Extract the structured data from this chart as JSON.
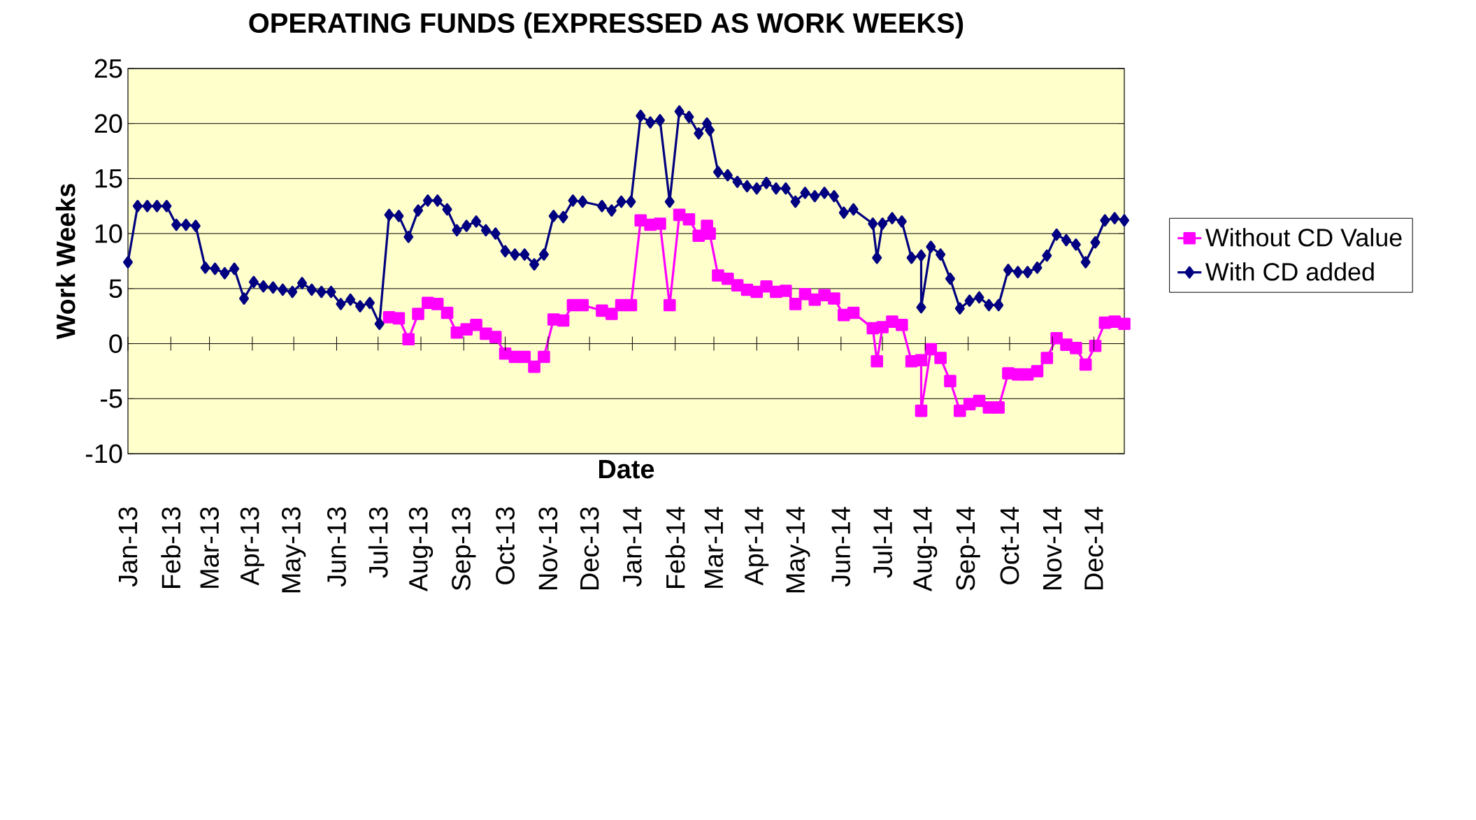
{
  "chart_data": {
    "type": "line",
    "title": "OPERATING FUNDS (EXPRESSED AS WORK WEEKS)",
    "xlabel": "Date",
    "ylabel": "Work Weeks",
    "x": [
      "2013-01-01",
      "2013-01-08",
      "2013-01-15",
      "2013-01-22",
      "2013-01-29",
      "2013-02-05",
      "2013-02-12",
      "2013-02-19",
      "2013-02-26",
      "2013-03-05",
      "2013-03-12",
      "2013-03-19",
      "2013-03-26",
      "2013-04-02",
      "2013-04-09",
      "2013-04-16",
      "2013-04-23",
      "2013-04-30",
      "2013-05-07",
      "2013-05-14",
      "2013-05-21",
      "2013-05-28",
      "2013-06-04",
      "2013-06-11",
      "2013-06-18",
      "2013-06-25",
      "2013-07-02",
      "2013-07-09",
      "2013-07-16",
      "2013-07-23",
      "2013-07-30",
      "2013-08-06",
      "2013-08-13",
      "2013-08-20",
      "2013-08-27",
      "2013-09-03",
      "2013-09-10",
      "2013-09-17",
      "2013-09-24",
      "2013-10-01",
      "2013-10-08",
      "2013-10-15",
      "2013-10-22",
      "2013-10-29",
      "2013-11-05",
      "2013-11-12",
      "2013-11-19",
      "2013-11-26",
      "2013-12-10",
      "2013-12-17",
      "2013-12-24",
      "2013-12-31",
      "2014-01-07",
      "2014-01-14",
      "2014-01-21",
      "2014-01-28",
      "2014-02-04",
      "2014-02-11",
      "2014-02-18",
      "2014-02-24",
      "2014-02-26",
      "2014-03-04",
      "2014-03-11",
      "2014-03-18",
      "2014-03-25",
      "2014-04-01",
      "2014-04-08",
      "2014-04-15",
      "2014-04-22",
      "2014-04-29",
      "2014-05-06",
      "2014-05-13",
      "2014-05-20",
      "2014-05-27",
      "2014-06-03",
      "2014-06-10",
      "2014-06-24",
      "2014-06-27",
      "2014-07-01",
      "2014-07-08",
      "2014-07-15",
      "2014-07-22",
      "2014-07-29",
      "2014-07-29",
      "2014-08-05",
      "2014-08-12",
      "2014-08-19",
      "2014-08-26",
      "2014-09-02",
      "2014-09-09",
      "2014-09-16",
      "2014-09-23",
      "2014-09-30",
      "2014-10-07",
      "2014-10-14",
      "2014-10-21",
      "2014-10-28",
      "2014-11-04",
      "2014-11-11",
      "2014-11-18",
      "2014-11-25",
      "2014-12-02",
      "2014-12-09",
      "2014-12-16",
      "2014-12-23"
    ],
    "series": [
      {
        "name": "Without CD Value",
        "color": "#ff00ff",
        "marker": "square",
        "values": [
          null,
          null,
          null,
          null,
          null,
          null,
          null,
          null,
          null,
          null,
          null,
          null,
          null,
          null,
          null,
          null,
          null,
          null,
          null,
          null,
          null,
          null,
          null,
          null,
          null,
          null,
          null,
          2.4,
          2.3,
          0.4,
          2.7,
          3.7,
          3.6,
          2.8,
          1.0,
          1.3,
          1.7,
          0.9,
          0.6,
          -0.9,
          -1.2,
          -1.2,
          -2.1,
          -1.2,
          2.2,
          2.1,
          3.5,
          3.5,
          3.0,
          2.7,
          3.5,
          3.5,
          11.2,
          10.8,
          10.9,
          3.5,
          11.7,
          11.3,
          9.8,
          10.7,
          10.0,
          6.2,
          5.9,
          5.3,
          4.9,
          4.7,
          5.2,
          4.7,
          4.8,
          3.6,
          4.5,
          4.0,
          4.4,
          4.1,
          2.6,
          2.8,
          1.4,
          -1.6,
          1.5,
          2.0,
          1.7,
          -1.6,
          -1.5,
          -6.1,
          -0.5,
          -1.3,
          -3.4,
          -6.1,
          -5.5,
          -5.2,
          -5.8,
          -5.8,
          -2.7,
          -2.8,
          -2.8,
          -2.5,
          -1.3,
          0.5,
          -0.1,
          -0.4,
          -1.9,
          -0.2,
          1.9,
          2.0,
          1.8
        ]
      },
      {
        "name": "With CD added",
        "color": "#000080",
        "marker": "diamond",
        "values": [
          7.4,
          12.5,
          12.5,
          12.5,
          12.5,
          10.8,
          10.8,
          10.7,
          6.9,
          6.8,
          6.4,
          6.8,
          4.1,
          5.6,
          5.2,
          5.1,
          4.9,
          4.7,
          5.5,
          4.9,
          4.7,
          4.7,
          3.6,
          4.0,
          3.4,
          3.7,
          1.8,
          11.7,
          11.6,
          9.7,
          12.1,
          13.0,
          13.0,
          12.2,
          10.3,
          10.7,
          11.1,
          10.3,
          10.0,
          8.4,
          8.1,
          8.1,
          7.2,
          8.1,
          11.6,
          11.5,
          13.0,
          12.9,
          12.5,
          12.1,
          12.9,
          12.9,
          20.7,
          20.1,
          20.3,
          12.9,
          21.1,
          20.6,
          19.1,
          20.0,
          19.4,
          15.6,
          15.3,
          14.7,
          14.3,
          14.1,
          14.6,
          14.1,
          14.1,
          12.9,
          13.7,
          13.4,
          13.7,
          13.4,
          11.9,
          12.2,
          10.9,
          7.8,
          10.9,
          11.4,
          11.1,
          7.8,
          8.0,
          3.3,
          8.8,
          8.1,
          5.9,
          3.2,
          3.9,
          4.2,
          3.5,
          3.5,
          6.7,
          6.5,
          6.5,
          6.9,
          8.0,
          9.9,
          9.4,
          9.0,
          7.4,
          9.2,
          11.2,
          11.4,
          11.2
        ]
      }
    ],
    "xlim": [
      "2013-01-01",
      "2014-12-23"
    ],
    "xticks": [
      {
        "value": "2013-01-01",
        "label": "Jan-13"
      },
      {
        "value": "2013-02-01",
        "label": "Feb-13"
      },
      {
        "value": "2013-03-01",
        "label": "Mar-13"
      },
      {
        "value": "2013-04-01",
        "label": "Apr-13"
      },
      {
        "value": "2013-05-01",
        "label": "May-13"
      },
      {
        "value": "2013-06-01",
        "label": "Jun-13"
      },
      {
        "value": "2013-07-01",
        "label": "Jul-13"
      },
      {
        "value": "2013-08-01",
        "label": "Aug-13"
      },
      {
        "value": "2013-09-01",
        "label": "Sep-13"
      },
      {
        "value": "2013-10-01",
        "label": "Oct-13"
      },
      {
        "value": "2013-11-01",
        "label": "Nov-13"
      },
      {
        "value": "2013-12-01",
        "label": "Dec-13"
      },
      {
        "value": "2014-01-01",
        "label": "Jan-14"
      },
      {
        "value": "2014-02-01",
        "label": "Feb-14"
      },
      {
        "value": "2014-03-01",
        "label": "Mar-14"
      },
      {
        "value": "2014-04-01",
        "label": "Apr-14"
      },
      {
        "value": "2014-05-01",
        "label": "May-14"
      },
      {
        "value": "2014-06-01",
        "label": "Jun-14"
      },
      {
        "value": "2014-07-01",
        "label": "Jul-14"
      },
      {
        "value": "2014-08-01",
        "label": "Aug-14"
      },
      {
        "value": "2014-09-01",
        "label": "Sep-14"
      },
      {
        "value": "2014-10-01",
        "label": "Oct-14"
      },
      {
        "value": "2014-11-01",
        "label": "Nov-14"
      },
      {
        "value": "2014-12-01",
        "label": "Dec-14"
      }
    ],
    "ylim": [
      -10,
      25
    ],
    "yticks": [
      -10,
      -5,
      0,
      5,
      10,
      15,
      20,
      25
    ],
    "grid": "y",
    "legend": "right",
    "line_style": "solid"
  }
}
